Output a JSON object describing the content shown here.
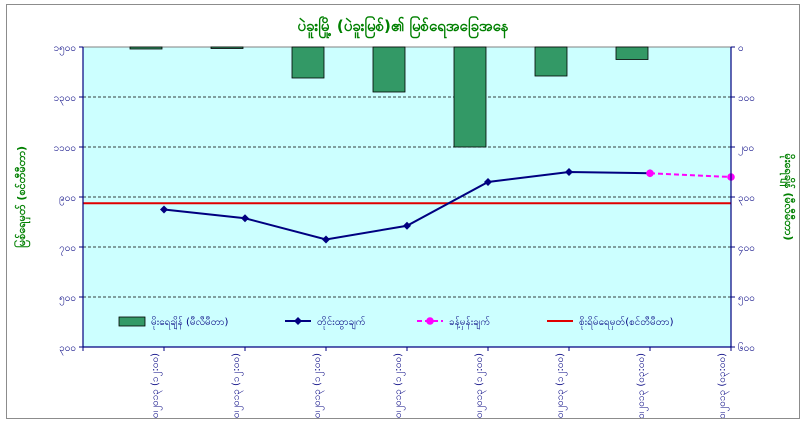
{
  "chart_data": {
    "type": "bar+line",
    "title": "ပဲခူးမြို့ (ပဲခူးမြစ်)၏ မြစ်ရေအခြေအနေ",
    "categories": [
      "၄၊၁၀၊၂၀၁၃ (၁၂:၀၀)",
      "၅၊၁၀၊၂၀၁၃ (၁၂:၀၀)",
      "၆၊၁၀၊၂၀၁၃ (၁၂:၀၀)",
      "၇၊၁၀၊၂၀၁၃ (၁၂:၀၀)",
      "၈၊၁၀၊၂၀၁၃ (၁၂:၀၀)",
      "၉၊၁၀၊၂၀၁၃ (၁၂:၀၀)",
      "၁၀၊၁၀၊၂၀၁၃ (၀၃:၀၀)",
      "၁၁၊၁၀၊၂၀၁၃ (၀၃:၀၀)"
    ],
    "y_left": {
      "label": "မြစ်ရေမှတ် (စင်တီမီတာ)",
      "ylim": [
        300,
        1500
      ],
      "ticks": [
        "၃၀၀",
        "၅၀၀",
        "၇၀၀",
        "၉၀၀",
        "၁၁၀၀",
        "၁၃၀၀",
        "၁၅၀၀"
      ],
      "tick_values": [
        300,
        500,
        700,
        900,
        1100,
        1300,
        1500
      ]
    },
    "y_right": {
      "label": "မိုးရေချိန် (မီလီမီတာ)",
      "ylim": [
        0,
        600
      ],
      "inverted": true,
      "ticks": [
        "၀",
        "၁၀၀",
        "၂၀၀",
        "၃၀၀",
        "၄၀၀",
        "၅၀၀",
        "၆၀၀"
      ],
      "tick_values": [
        0,
        100,
        200,
        300,
        400,
        500,
        600
      ]
    },
    "series": [
      {
        "name": "မိုးရေချိန် (မီလီမီတာ)",
        "kind": "bar",
        "axis": "right",
        "color": "#339966",
        "values": [
          4,
          0,
          62,
          90,
          200,
          58,
          25,
          null
        ]
      },
      {
        "name": "တိုင်းထွာချက်",
        "kind": "line",
        "axis": "left",
        "color": "#000080",
        "marker": "diamond",
        "values": [
          850,
          815,
          730,
          785,
          960,
          1000,
          995,
          null
        ]
      },
      {
        "name": "ခန့်မှန်းချက်",
        "kind": "line-dashed",
        "axis": "left",
        "color": "#ff00ff",
        "marker": "circle",
        "values": [
          null,
          null,
          null,
          null,
          null,
          null,
          995,
          980
        ]
      },
      {
        "name": "စိုးရိမ်ရေမှတ်(စင်တီမီတာ)",
        "kind": "hline",
        "axis": "left",
        "color": "#e00000",
        "value": 875
      }
    ],
    "plot_background": "#ccffff",
    "grid": true,
    "legend": "bottom, inside plot"
  }
}
